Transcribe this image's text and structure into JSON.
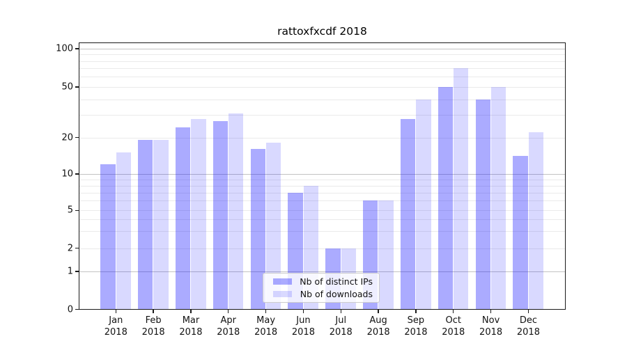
{
  "chart_data": {
    "type": "bar",
    "title": "rattoxfxcdf 2018",
    "categories": [
      "Jan 2018",
      "Feb 2018",
      "Mar 2018",
      "Apr 2018",
      "May 2018",
      "Jun 2018",
      "Jul 2018",
      "Aug 2018",
      "Sep 2018",
      "Oct 2018",
      "Nov 2018",
      "Dec 2018"
    ],
    "months": [
      "Jan",
      "Feb",
      "Mar",
      "Apr",
      "May",
      "Jun",
      "Jul",
      "Aug",
      "Sep",
      "Oct",
      "Nov",
      "Dec"
    ],
    "year_label": "2018",
    "series": [
      {
        "name": "Nb of distinct IPs",
        "color": "rgba(0,0,255,0.33)",
        "values": [
          12,
          19,
          24,
          27,
          16,
          7,
          2,
          6,
          28,
          50,
          40,
          14
        ]
      },
      {
        "name": "Nb of downloads",
        "color": "rgba(0,0,255,0.15)",
        "values": [
          15,
          19,
          28,
          31,
          18,
          8,
          2,
          6,
          40,
          70,
          50,
          22
        ]
      }
    ],
    "yscale": "symlog",
    "ylim": [
      0,
      107
    ],
    "y_tick_labels": [
      100,
      50,
      20,
      10,
      5,
      2,
      1,
      0
    ],
    "y_major_gridlines": [
      1,
      10,
      100
    ],
    "y_minor_gridlines": [
      2,
      3,
      4,
      5,
      6,
      7,
      8,
      9,
      20,
      30,
      40,
      50,
      60,
      70,
      80,
      90
    ],
    "grid": true,
    "legend_position": "lower center",
    "colors": {
      "grid_minor": "#eaeaea",
      "grid_major": "#c3c3c3",
      "axis": "#1a1a1a"
    }
  }
}
